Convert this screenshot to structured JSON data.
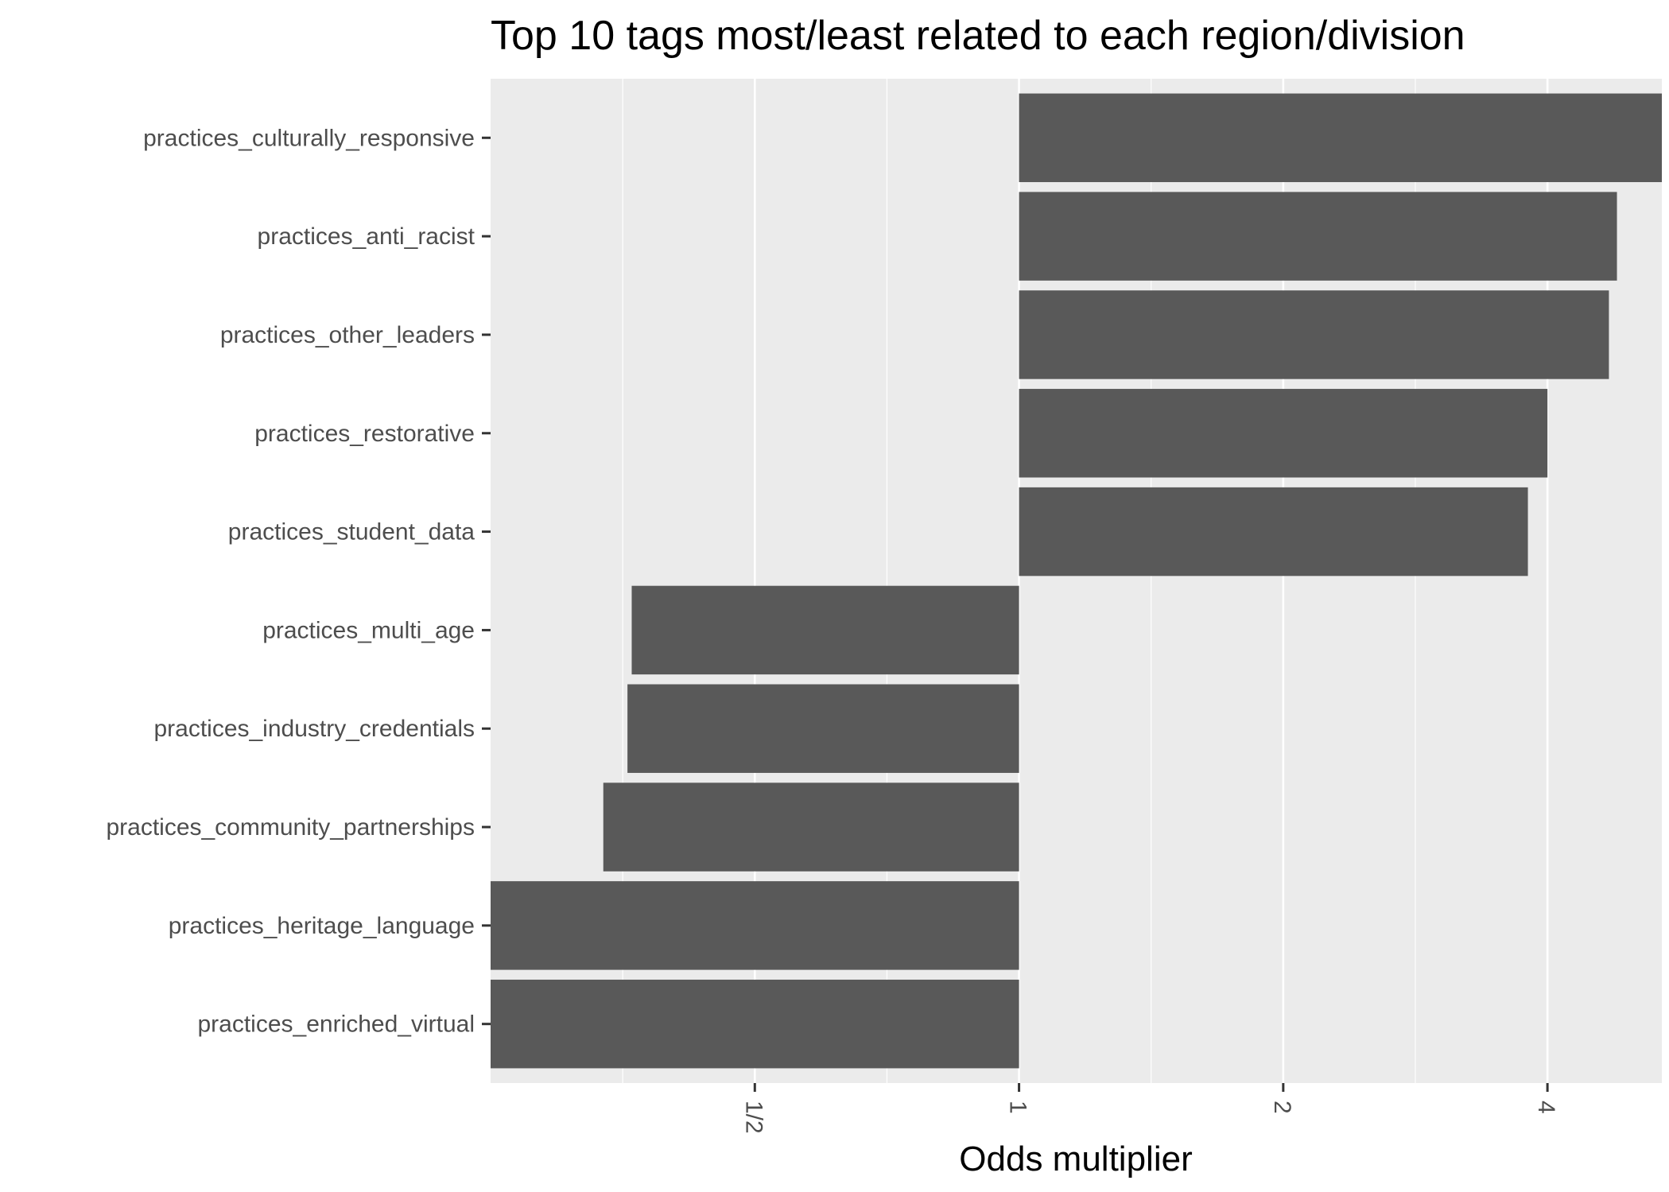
{
  "chart_data": {
    "type": "bar",
    "orientation": "horizontal",
    "title": "Top 10 tags most/least related to each region/division",
    "xlabel": "Odds multiplier",
    "ylabel": "",
    "x_scale": "log2",
    "baseline": 1,
    "xlim": [
      0.25,
      5.4
    ],
    "x_ticks": [
      {
        "value": 0.5,
        "label": "1/2"
      },
      {
        "value": 1,
        "label": "1"
      },
      {
        "value": 2,
        "label": "2"
      },
      {
        "value": 4,
        "label": "4"
      }
    ],
    "grid": true,
    "categories": [
      "practices_culturally_responsive",
      "practices_anti_racist",
      "practices_other_leaders",
      "practices_restorative",
      "practices_student_data",
      "practices_multi_age",
      "practices_industry_credentials",
      "practices_community_partnerships",
      "practices_heritage_language",
      "practices_enriched_virtual"
    ],
    "values": [
      5.4,
      4.8,
      4.7,
      4.0,
      3.8,
      0.362,
      0.358,
      0.336,
      0.25,
      0.25
    ],
    "bar_color": "#595959",
    "panel_color": "#ebebeb",
    "grid_color": "#ffffff"
  }
}
